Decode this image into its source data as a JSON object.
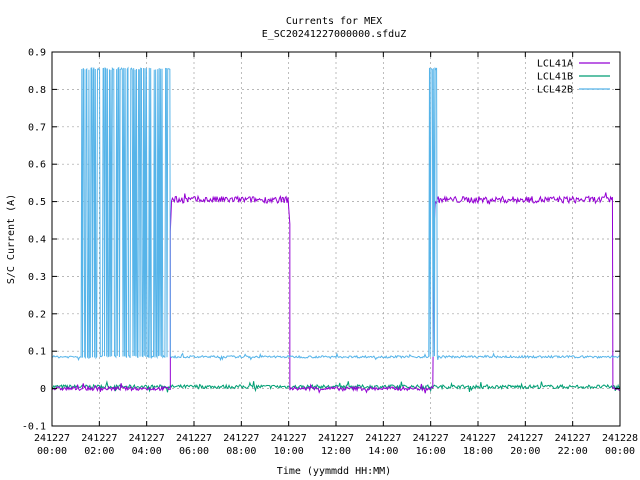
{
  "chart_data": {
    "type": "line",
    "title": "Currents for MEX",
    "subtitle": "E_SC20241227000000.sfduZ",
    "xlabel": "Time (yymmdd HH:MM)",
    "ylabel": "S/C Current (A)",
    "xlim": [
      0,
      24
    ],
    "ylim": [
      -0.1,
      0.9
    ],
    "grid": true,
    "legend_position": "top-right",
    "x_ticks": [
      {
        "value": 0,
        "date": "241227",
        "time": "00:00"
      },
      {
        "value": 2,
        "date": "241227",
        "time": "02:00"
      },
      {
        "value": 4,
        "date": "241227",
        "time": "04:00"
      },
      {
        "value": 6,
        "date": "241227",
        "time": "06:00"
      },
      {
        "value": 8,
        "date": "241227",
        "time": "08:00"
      },
      {
        "value": 10,
        "date": "241227",
        "time": "10:00"
      },
      {
        "value": 12,
        "date": "241227",
        "time": "12:00"
      },
      {
        "value": 14,
        "date": "241227",
        "time": "14:00"
      },
      {
        "value": 16,
        "date": "241227",
        "time": "16:00"
      },
      {
        "value": 18,
        "date": "241227",
        "time": "18:00"
      },
      {
        "value": 20,
        "date": "241227",
        "time": "20:00"
      },
      {
        "value": 22,
        "date": "241227",
        "time": "22:00"
      },
      {
        "value": 24,
        "date": "241228",
        "time": "00:00"
      }
    ],
    "y_ticks": [
      -0.1,
      0,
      0.1,
      0.2,
      0.3,
      0.4,
      0.5,
      0.6,
      0.7,
      0.8,
      0.9
    ],
    "y_tick_labels": [
      "-0.1",
      "0",
      "0.1",
      "0.2",
      "0.3",
      "0.4",
      "0.5",
      "0.6",
      "0.7",
      "0.8",
      "0.9"
    ],
    "series": [
      {
        "name": "LCL41A",
        "color": "#9400d3",
        "segments": [
          {
            "kind": "level",
            "from": 0,
            "to": 5.0,
            "value": 0.0,
            "noise": 0.01
          },
          {
            "kind": "point",
            "x": 5.0,
            "value": 0.42
          },
          {
            "kind": "level",
            "from": 5.05,
            "to": 10.0,
            "value": 0.505,
            "noise": 0.018
          },
          {
            "kind": "point",
            "x": 10.05,
            "value": 0.44
          },
          {
            "kind": "level",
            "from": 10.05,
            "to": 16.1,
            "value": 0.0,
            "noise": 0.01
          },
          {
            "kind": "point",
            "x": 16.15,
            "value": 0.44
          },
          {
            "kind": "level",
            "from": 16.2,
            "to": 23.7,
            "value": 0.505,
            "noise": 0.018
          },
          {
            "kind": "level",
            "from": 23.7,
            "to": 24.0,
            "value": 0.0,
            "noise": 0.01
          }
        ]
      },
      {
        "name": "LCL41B",
        "color": "#009e73",
        "segments": [
          {
            "kind": "level",
            "from": 0,
            "to": 24.0,
            "value": 0.005,
            "noise": 0.01
          }
        ]
      },
      {
        "name": "LCL42B",
        "color": "#56b4e9",
        "segments": [
          {
            "kind": "level",
            "from": 0,
            "to": 1.2,
            "value": 0.085,
            "noise": 0.006
          },
          {
            "kind": "toggle",
            "from": 1.2,
            "to": 5.0,
            "low": 0.085,
            "high": 0.855
          },
          {
            "kind": "level",
            "from": 5.0,
            "to": 15.95,
            "value": 0.085,
            "noise": 0.006
          },
          {
            "kind": "toggle",
            "from": 15.95,
            "to": 16.3,
            "low": 0.085,
            "high": 0.855
          },
          {
            "kind": "level",
            "from": 16.3,
            "to": 24.0,
            "value": 0.085,
            "noise": 0.006
          }
        ]
      }
    ]
  }
}
